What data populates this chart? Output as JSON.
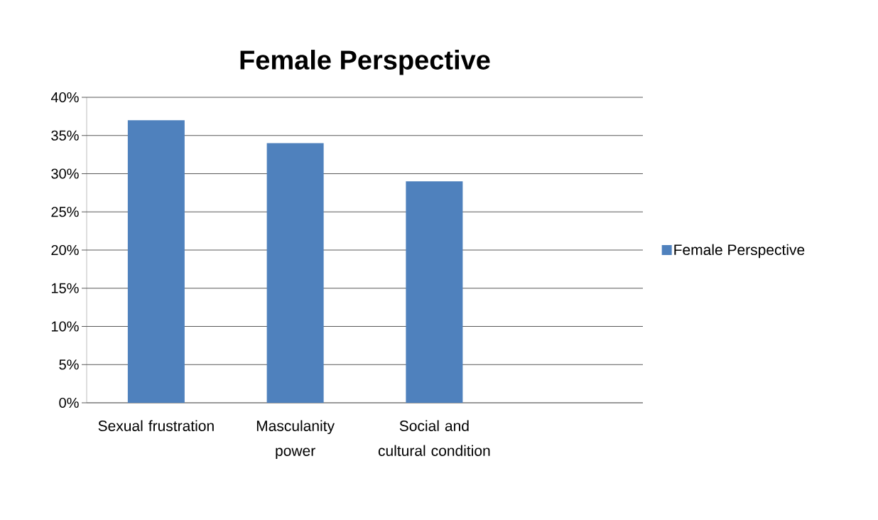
{
  "chart_data": {
    "type": "bar",
    "title": "Female Perspective",
    "categories": [
      "Sexual frustration",
      "Masculanity power",
      "Social and cultural condition",
      null
    ],
    "series": [
      {
        "name": "Female Perspective",
        "color": "#4f81bd",
        "values": [
          37,
          34,
          29,
          null
        ]
      }
    ],
    "ylim": [
      0,
      40
    ],
    "yticks": [
      {
        "value": 0,
        "label": "0%"
      },
      {
        "value": 5,
        "label": "5%"
      },
      {
        "value": 10,
        "label": "10%"
      },
      {
        "value": 15,
        "label": "15%"
      },
      {
        "value": 20,
        "label": "20%"
      },
      {
        "value": 25,
        "label": "25%"
      },
      {
        "value": 30,
        "label": "30%"
      },
      {
        "value": 35,
        "label": "35%"
      },
      {
        "value": 40,
        "label": "40%"
      }
    ],
    "grid": "y",
    "legend": "right"
  }
}
